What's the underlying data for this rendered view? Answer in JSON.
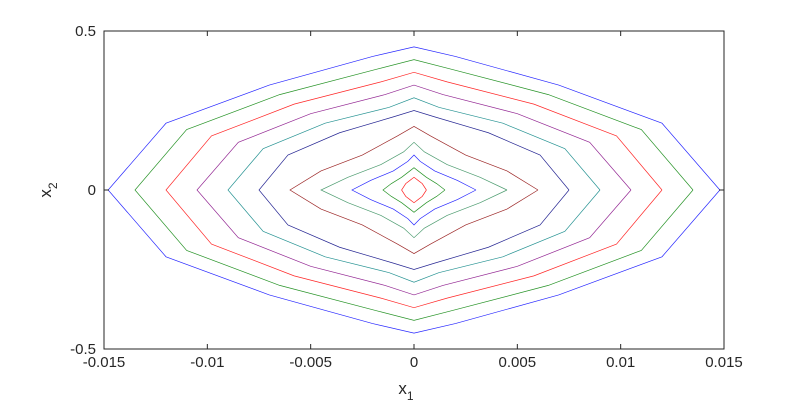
{
  "chart_data": {
    "type": "line",
    "title": "",
    "xlabel": "x",
    "xlabel_sub": "1",
    "ylabel": "x",
    "ylabel_sub": "2",
    "xlim": [
      -0.015,
      0.015
    ],
    "ylim": [
      -0.5,
      0.5
    ],
    "xticks": [
      "-0.015",
      "-0.01",
      "-0.005",
      "0",
      "0.005",
      "0.01",
      "0.015"
    ],
    "xtick_values": [
      -0.015,
      -0.01,
      -0.005,
      0,
      0.005,
      0.01,
      0.015
    ],
    "yticks": [
      "-0.5",
      "0",
      "0.5"
    ],
    "ytick_values": [
      -0.5,
      0,
      0.5
    ],
    "grid": false,
    "legend": "none",
    "colors": [
      "#0000ff",
      "#008000",
      "#ff0000",
      "#800080",
      "#008080",
      "#000080",
      "#8b0000",
      "#2e8b57"
    ],
    "series": [
      {
        "x": [
          0.0148,
          0.012,
          0.007,
          0.002,
          0,
          -0.002,
          -0.007,
          -0.012,
          -0.0148,
          -0.012,
          -0.007,
          -0.002,
          0,
          0.002,
          0.007,
          0.012,
          0.0148
        ],
        "y": [
          0,
          0.21,
          0.33,
          0.42,
          0.45,
          0.42,
          0.33,
          0.21,
          0,
          -0.21,
          -0.33,
          -0.42,
          -0.45,
          -0.42,
          -0.33,
          -0.21,
          0
        ]
      },
      {
        "x": [
          0.0135,
          0.011,
          0.0065,
          0.0018,
          0,
          -0.0018,
          -0.0065,
          -0.011,
          -0.0135,
          -0.011,
          -0.0065,
          -0.0018,
          0,
          0.0018,
          0.0065,
          0.011,
          0.0135
        ],
        "y": [
          0,
          0.19,
          0.3,
          0.38,
          0.41,
          0.38,
          0.3,
          0.19,
          0,
          -0.19,
          -0.3,
          -0.38,
          -0.41,
          -0.38,
          -0.3,
          -0.19,
          0
        ]
      },
      {
        "x": [
          0.012,
          0.0098,
          0.0058,
          0.0016,
          0,
          -0.0016,
          -0.0058,
          -0.0098,
          -0.012,
          -0.0098,
          -0.0058,
          -0.0016,
          0,
          0.0016,
          0.0058,
          0.0098,
          0.012
        ],
        "y": [
          0,
          0.17,
          0.27,
          0.34,
          0.37,
          0.34,
          0.27,
          0.17,
          0,
          -0.17,
          -0.27,
          -0.34,
          -0.37,
          -0.34,
          -0.27,
          -0.17,
          0
        ]
      },
      {
        "x": [
          0.0105,
          0.0085,
          0.005,
          0.0014,
          0,
          -0.0014,
          -0.005,
          -0.0085,
          -0.0105,
          -0.0085,
          -0.005,
          -0.0014,
          0,
          0.0014,
          0.005,
          0.0085,
          0.0105
        ],
        "y": [
          0,
          0.15,
          0.24,
          0.3,
          0.33,
          0.3,
          0.24,
          0.15,
          0,
          -0.15,
          -0.24,
          -0.3,
          -0.33,
          -0.3,
          -0.24,
          -0.15,
          0
        ]
      },
      {
        "x": [
          0.009,
          0.0073,
          0.0043,
          0.0012,
          0,
          -0.0012,
          -0.0043,
          -0.0073,
          -0.009,
          -0.0073,
          -0.0043,
          -0.0012,
          0,
          0.0012,
          0.0043,
          0.0073,
          0.009
        ],
        "y": [
          0,
          0.13,
          0.21,
          0.26,
          0.29,
          0.26,
          0.21,
          0.13,
          0,
          -0.13,
          -0.21,
          -0.26,
          -0.29,
          -0.26,
          -0.21,
          -0.13,
          0
        ]
      },
      {
        "x": [
          0.0075,
          0.0061,
          0.0036,
          0.001,
          0,
          -0.001,
          -0.0036,
          -0.0061,
          -0.0075,
          -0.0061,
          -0.0036,
          -0.001,
          0,
          0.001,
          0.0036,
          0.0061,
          0.0075
        ],
        "y": [
          0,
          0.11,
          0.18,
          0.23,
          0.25,
          0.23,
          0.18,
          0.11,
          0,
          -0.11,
          -0.18,
          -0.23,
          -0.25,
          -0.23,
          -0.18,
          -0.11,
          0
        ]
      },
      {
        "x": [
          0.006,
          0.0045,
          0.0025,
          0.0008,
          0,
          -0.0008,
          -0.0025,
          -0.0045,
          -0.006,
          -0.0045,
          -0.0025,
          -0.0008,
          0,
          0.0008,
          0.0025,
          0.0045,
          0.006
        ],
        "y": [
          0,
          0.06,
          0.11,
          0.17,
          0.2,
          0.17,
          0.11,
          0.06,
          0,
          -0.06,
          -0.11,
          -0.17,
          -0.2,
          -0.17,
          -0.11,
          -0.06,
          0
        ]
      },
      {
        "x": [
          0.0045,
          0.0032,
          0.0016,
          0.0005,
          0,
          -0.0005,
          -0.0016,
          -0.0032,
          -0.0045,
          -0.0032,
          -0.0016,
          -0.0005,
          0,
          0.0005,
          0.0016,
          0.0032,
          0.0045
        ],
        "y": [
          0,
          0.04,
          0.08,
          0.12,
          0.15,
          0.12,
          0.08,
          0.04,
          0,
          -0.04,
          -0.08,
          -0.12,
          -0.15,
          -0.12,
          -0.08,
          -0.04,
          0
        ]
      },
      {
        "x": [
          0.003,
          0.0021,
          0.001,
          0.0003,
          0,
          -0.0003,
          -0.001,
          -0.0021,
          -0.003,
          -0.0021,
          -0.001,
          -0.0003,
          0,
          0.0003,
          0.001,
          0.0021,
          0.003
        ],
        "y": [
          0,
          0.03,
          0.06,
          0.09,
          0.11,
          0.09,
          0.06,
          0.03,
          0,
          -0.03,
          -0.06,
          -0.09,
          -0.11,
          -0.09,
          -0.06,
          -0.03,
          0
        ]
      },
      {
        "x": [
          0.0015,
          0.0011,
          0.0006,
          0.0002,
          0,
          -0.0002,
          -0.0006,
          -0.0011,
          -0.0015,
          -0.0011,
          -0.0006,
          -0.0002,
          0,
          0.0002,
          0.0006,
          0.0011,
          0.0015
        ],
        "y": [
          0,
          0.02,
          0.04,
          0.06,
          0.07,
          0.06,
          0.04,
          0.02,
          0,
          -0.02,
          -0.04,
          -0.06,
          -0.07,
          -0.06,
          -0.04,
          -0.02,
          0
        ]
      },
      {
        "x": [
          0.0006,
          0.0004,
          0.0002,
          0,
          -0.0002,
          -0.0004,
          -0.0006,
          -0.0004,
          -0.0002,
          0,
          0.0002,
          0.0004,
          0.0006
        ],
        "y": [
          0,
          0.02,
          0.03,
          0.04,
          0.03,
          0.02,
          0,
          -0.02,
          -0.03,
          -0.04,
          -0.03,
          -0.02,
          0
        ]
      }
    ]
  }
}
